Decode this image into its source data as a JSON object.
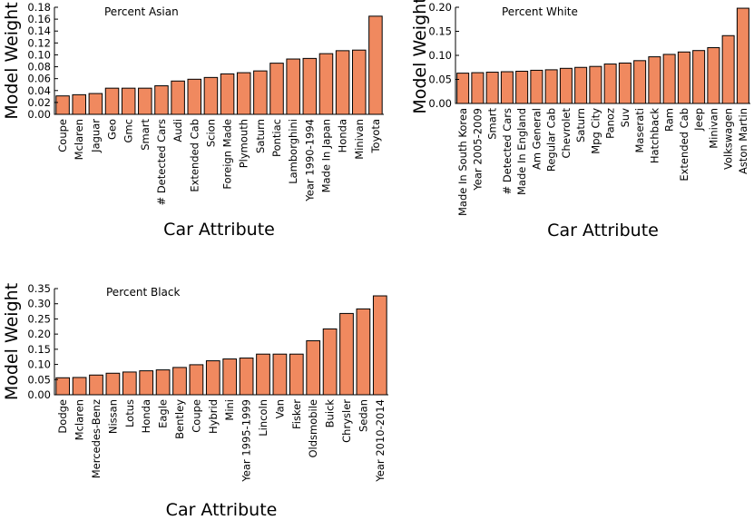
{
  "colors": {
    "bar": "#F0895F",
    "edge": "#000000"
  },
  "chart_data": [
    {
      "type": "bar",
      "title": "Percent Asian",
      "xlabel": "Car Attribute",
      "ylabel": "Model Weight",
      "ylim": [
        0,
        0.18
      ],
      "yticks": [
        "0.00",
        "0.02",
        "0.04",
        "0.06",
        "0.08",
        "0.10",
        "0.12",
        "0.14",
        "0.16",
        "0.18"
      ],
      "categories": [
        "Coupe",
        "Mclaren",
        "Jaguar",
        "Geo",
        "Gmc",
        "Smart",
        "# Detected Cars",
        "Audi",
        "Extended Cab",
        "Scion",
        "Foreign Made",
        "Plymouth",
        "Saturn",
        "Pontiac",
        "Lamborghini",
        "Year 1990-1994",
        "Made In Japan",
        "Honda",
        "Minivan",
        "Toyota"
      ],
      "values": [
        0.031,
        0.033,
        0.035,
        0.044,
        0.044,
        0.044,
        0.048,
        0.056,
        0.059,
        0.062,
        0.068,
        0.07,
        0.073,
        0.086,
        0.093,
        0.094,
        0.102,
        0.107,
        0.108,
        0.165
      ]
    },
    {
      "type": "bar",
      "title": "Percent White",
      "xlabel": "Car Attribute",
      "ylabel": "Model Weight",
      "ylim": [
        0,
        0.2
      ],
      "yticks": [
        "0.00",
        "0.05",
        "0.10",
        "0.15",
        "0.20"
      ],
      "categories": [
        "Made In South Korea",
        "Year 2005-2009",
        "Smart",
        "# Detected Cars",
        "Made In England",
        "Am General",
        "Regular Cab",
        "Chevrolet",
        "Saturn",
        "Mpg City",
        "Panoz",
        "Suv",
        "Maserati",
        "Hatchback",
        "Ram",
        "Extended Cab",
        "Jeep",
        "Minivan",
        "Volkswagen",
        "Aston Martin"
      ],
      "values": [
        0.063,
        0.064,
        0.065,
        0.066,
        0.067,
        0.069,
        0.07,
        0.073,
        0.075,
        0.077,
        0.082,
        0.084,
        0.089,
        0.097,
        0.102,
        0.107,
        0.11,
        0.116,
        0.141,
        0.198
      ]
    },
    {
      "type": "bar",
      "title": "Percent Black",
      "xlabel": "Car Attribute",
      "ylabel": "Model Weight",
      "ylim": [
        0,
        0.35
      ],
      "yticks": [
        "0.00",
        "0.05",
        "0.10",
        "0.15",
        "0.20",
        "0.25",
        "0.30",
        "0.35"
      ],
      "categories": [
        "Dodge",
        "Mclaren",
        "Mercedes-Benz",
        "Nissan",
        "Lotus",
        "Honda",
        "Eagle",
        "Bentley",
        "Coupe",
        "Hybrid",
        "Mini",
        "Year 1995-1999",
        "Lincoln",
        "Van",
        "Fisker",
        "Oldsmobile",
        "Buick",
        "Chrysler",
        "Sedan",
        "Year 2010-2014"
      ],
      "values": [
        0.056,
        0.057,
        0.065,
        0.071,
        0.075,
        0.079,
        0.082,
        0.09,
        0.099,
        0.112,
        0.118,
        0.121,
        0.134,
        0.134,
        0.134,
        0.178,
        0.217,
        0.268,
        0.283,
        0.326
      ]
    }
  ]
}
